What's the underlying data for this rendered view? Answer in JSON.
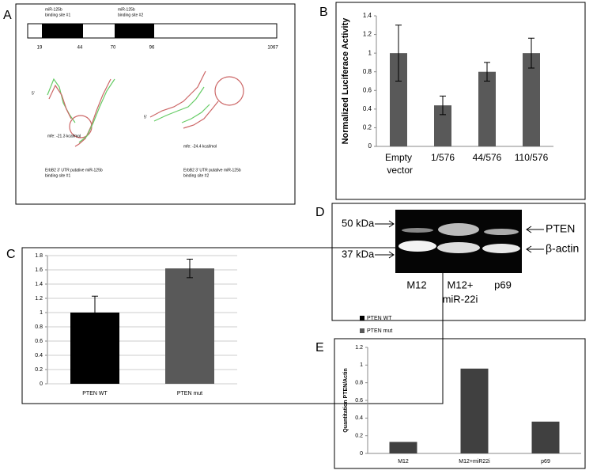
{
  "panel_labels": [
    "A",
    "B",
    "C",
    "D",
    "E"
  ],
  "diagram": {
    "sites": [
      [
        "miR-125b",
        "binding site #1"
      ],
      [
        "miR-125b",
        "binding site #2"
      ]
    ],
    "positions": [
      19,
      44,
      70,
      96,
      1067
    ],
    "structures": [
      {
        "end": "5'",
        "mfe": "mfe: -21.3 kcal/mol",
        "caption": [
          "ErbB2 3' UTR putative miR-125b",
          "binding site #1"
        ]
      },
      {
        "end": "5'",
        "mfe": "mfe: -24.4 kcal/mol",
        "caption": [
          "ErbB2 3' UTR putative miR-125b",
          "binding site #2"
        ]
      }
    ]
  },
  "blot": {
    "markers": [
      "50 kDa",
      "37 kDa"
    ],
    "bands": [
      "PTEN",
      "β-actin"
    ],
    "lanes": [
      [
        "M12"
      ],
      [
        "M12+",
        "miR-22i"
      ],
      [
        "p69"
      ]
    ]
  },
  "chart_data": [
    {
      "type": "bar",
      "ylabel": "Normalized Luciferace Activity",
      "categories": [
        "Empty vector",
        "1/576",
        "44/576",
        "110/576"
      ],
      "values": [
        1,
        0.44,
        0.8,
        1
      ],
      "errors": [
        0.3,
        0.1,
        0.1,
        0.16
      ],
      "color": "#595959",
      "ylim": [
        0,
        1.4
      ],
      "yticks": [
        0,
        0.2,
        0.4,
        0.6,
        0.8,
        1,
        1.2,
        1.4
      ],
      "grid": false
    },
    {
      "type": "bar",
      "categories": [
        "PTEN WT",
        "PTEN mut"
      ],
      "values": [
        1,
        1.62
      ],
      "errors": [
        0.23,
        0.13
      ],
      "colors": [
        "#000000",
        "#595959"
      ],
      "legend": [
        "PTEN WT",
        "PTEN mut"
      ],
      "ylim": [
        0,
        1.8
      ],
      "yticks": [
        0,
        0.2,
        0.4,
        0.6,
        0.8,
        1,
        1.2,
        1.4,
        1.6,
        1.8
      ],
      "grid": true
    },
    {
      "type": "bar",
      "ylabel": "Quantitation PTEN/Actin",
      "categories": [
        "M12",
        "M12+miR22i",
        "p69"
      ],
      "values": [
        0.13,
        0.96,
        0.36
      ],
      "color": "#404040",
      "ylim": [
        0,
        1.2
      ],
      "yticks": [
        0,
        0.2,
        0.4,
        0.6,
        0.8,
        1,
        1.2
      ],
      "grid": false
    }
  ]
}
